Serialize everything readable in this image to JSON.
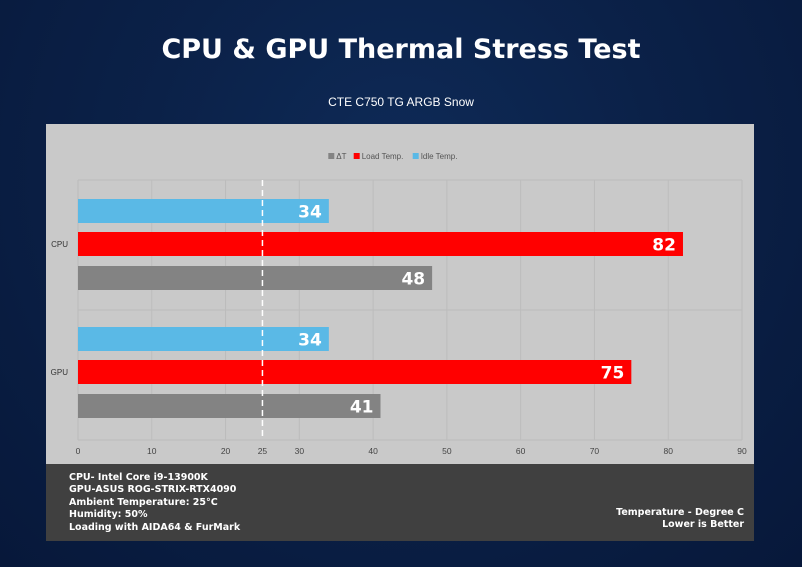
{
  "header": {
    "title": "CPU & GPU Thermal Stress Test",
    "subtitle": "CTE C750 TG ARGB Snow"
  },
  "chart_data": {
    "type": "bar",
    "orientation": "horizontal",
    "categories": [
      "CPU",
      "GPU"
    ],
    "series": [
      {
        "name": "Idle Temp.",
        "values": [
          34,
          34
        ],
        "color": "#5ab9e6"
      },
      {
        "name": "Load Temp.",
        "values": [
          82,
          75
        ],
        "color": "#ff0000"
      },
      {
        "name": "ΔT",
        "values": [
          48,
          41
        ],
        "color": "#838383"
      }
    ],
    "legend_order": [
      "ΔT",
      "Load Temp.",
      "Idle Temp."
    ],
    "legend_position": "top-center",
    "xlim": [
      0,
      90
    ],
    "x_ticks": [
      0,
      10,
      20,
      25,
      30,
      40,
      50,
      60,
      70,
      80,
      90
    ],
    "reference_line": {
      "value": 25,
      "style": "dashed",
      "color": "#ffffff"
    },
    "grid": true
  },
  "footer": {
    "specs": [
      "CPU- Intel Core i9-13900K",
      "GPU-ASUS ROG-STRIX-RTX4090",
      "Ambient Temperature: 25°C",
      "Humidity: 50%",
      "Loading with AIDA64  & FurMark"
    ],
    "notes": [
      "Temperature - Degree C",
      "Lower is Better"
    ]
  },
  "colors": {
    "background": "#0b2148",
    "panel": "#c9c9c9",
    "footer": "#404040"
  }
}
